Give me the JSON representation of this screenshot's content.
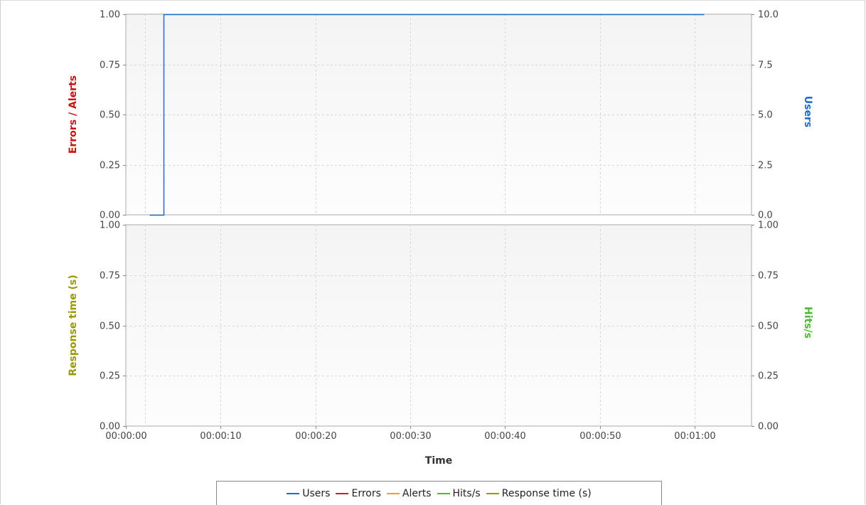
{
  "chart_data": [
    {
      "type": "line",
      "panel": "top",
      "y_left": {
        "label": "Errors / Alerts",
        "ylim": [
          0,
          1
        ],
        "ticks": [
          "0.00",
          "0.25",
          "0.50",
          "0.75",
          "1.00"
        ]
      },
      "y_right": {
        "label": "Users",
        "ylim": [
          0,
          10
        ],
        "ticks": [
          "0.0",
          "2.5",
          "5.0",
          "7.5",
          "10.0"
        ]
      },
      "series": [
        {
          "name": "Users",
          "axis": "right",
          "step": true,
          "x": [
            2.5,
            4.0,
            4.0,
            61.0
          ],
          "y": [
            0,
            0,
            10,
            10
          ]
        }
      ],
      "grid": true
    },
    {
      "type": "line",
      "panel": "bottom",
      "y_left": {
        "label": "Response time (s)",
        "ylim": [
          0,
          1
        ],
        "ticks": [
          "0.00",
          "0.25",
          "0.50",
          "0.75",
          "1.00"
        ]
      },
      "y_right": {
        "label": "Hits/s",
        "ylim": [
          0,
          1
        ],
        "ticks": [
          "0.00",
          "0.25",
          "0.50",
          "0.75",
          "1.00"
        ]
      },
      "series": [],
      "grid": true
    }
  ],
  "x_axis": {
    "label": "Time",
    "xlim": [
      0,
      66
    ],
    "ticks": [
      {
        "value": 0,
        "label": "00:00:00"
      },
      {
        "value": 10,
        "label": "00:00:10"
      },
      {
        "value": 20,
        "label": "00:00:20"
      },
      {
        "value": 30,
        "label": "00:00:30"
      },
      {
        "value": 40,
        "label": "00:00:40"
      },
      {
        "value": 50,
        "label": "00:00:50"
      },
      {
        "value": 60,
        "label": "00:01:00"
      }
    ]
  },
  "legend": [
    {
      "name": "Users",
      "color": "#1f6dd1"
    },
    {
      "name": "Errors",
      "color": "#cc1f1f"
    },
    {
      "name": "Alerts",
      "color": "#f0a030"
    },
    {
      "name": "Hits/s",
      "color": "#4cbb2f"
    },
    {
      "name": "Response time (s)",
      "color": "#999900"
    }
  ],
  "colors": {
    "errors_alerts_label": "#cc1111",
    "users_label": "#1f6dd1",
    "response_label": "#999900",
    "hits_label": "#4cbb2f",
    "users_line": "#1f6dd1",
    "grid": "#d8d8d8",
    "plot_border": "#aaaaaa"
  }
}
